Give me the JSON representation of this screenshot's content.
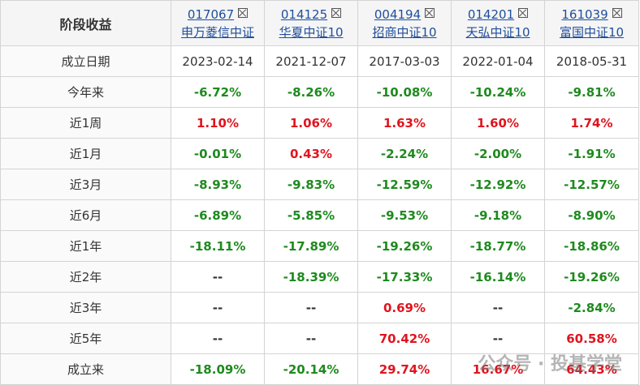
{
  "header": {
    "title": "阶段收益",
    "funds": [
      {
        "code": "017067",
        "name": "申万菱信中证"
      },
      {
        "code": "014125",
        "name": "华夏中证10"
      },
      {
        "code": "004194",
        "name": "招商中证10"
      },
      {
        "code": "014201",
        "name": "天弘中证10"
      },
      {
        "code": "161039",
        "name": "富国中证10"
      }
    ]
  },
  "table": {
    "rows": [
      {
        "label": "成立日期",
        "cells": [
          "2023-02-14",
          "2021-12-07",
          "2017-03-03",
          "2022-01-04",
          "2018-05-31"
        ]
      },
      {
        "label": "今年来",
        "cells": [
          "-6.72%",
          "-8.26%",
          "-10.08%",
          "-10.24%",
          "-9.81%"
        ]
      },
      {
        "label": "近1周",
        "cells": [
          "1.10%",
          "1.06%",
          "1.63%",
          "1.60%",
          "1.74%"
        ]
      },
      {
        "label": "近1月",
        "cells": [
          "-0.01%",
          "0.43%",
          "-2.24%",
          "-2.00%",
          "-1.91%"
        ]
      },
      {
        "label": "近3月",
        "cells": [
          "-8.93%",
          "-9.83%",
          "-12.59%",
          "-12.92%",
          "-12.57%"
        ]
      },
      {
        "label": "近6月",
        "cells": [
          "-6.89%",
          "-5.85%",
          "-9.53%",
          "-9.18%",
          "-8.90%"
        ]
      },
      {
        "label": "近1年",
        "cells": [
          "-18.11%",
          "-17.89%",
          "-19.26%",
          "-18.77%",
          "-18.86%"
        ]
      },
      {
        "label": "近2年",
        "cells": [
          "--",
          "-18.39%",
          "-17.33%",
          "-16.14%",
          "-19.26%"
        ]
      },
      {
        "label": "近3年",
        "cells": [
          "--",
          "--",
          "0.69%",
          "--",
          "-2.84%"
        ]
      },
      {
        "label": "近5年",
        "cells": [
          "--",
          "--",
          "70.42%",
          "--",
          "60.58%"
        ]
      },
      {
        "label": "成立来",
        "cells": [
          "-18.09%",
          "-20.14%",
          "29.74%",
          "16.67%",
          "64.43%"
        ]
      }
    ]
  },
  "watermark": "公众号 · 投基学堂"
}
